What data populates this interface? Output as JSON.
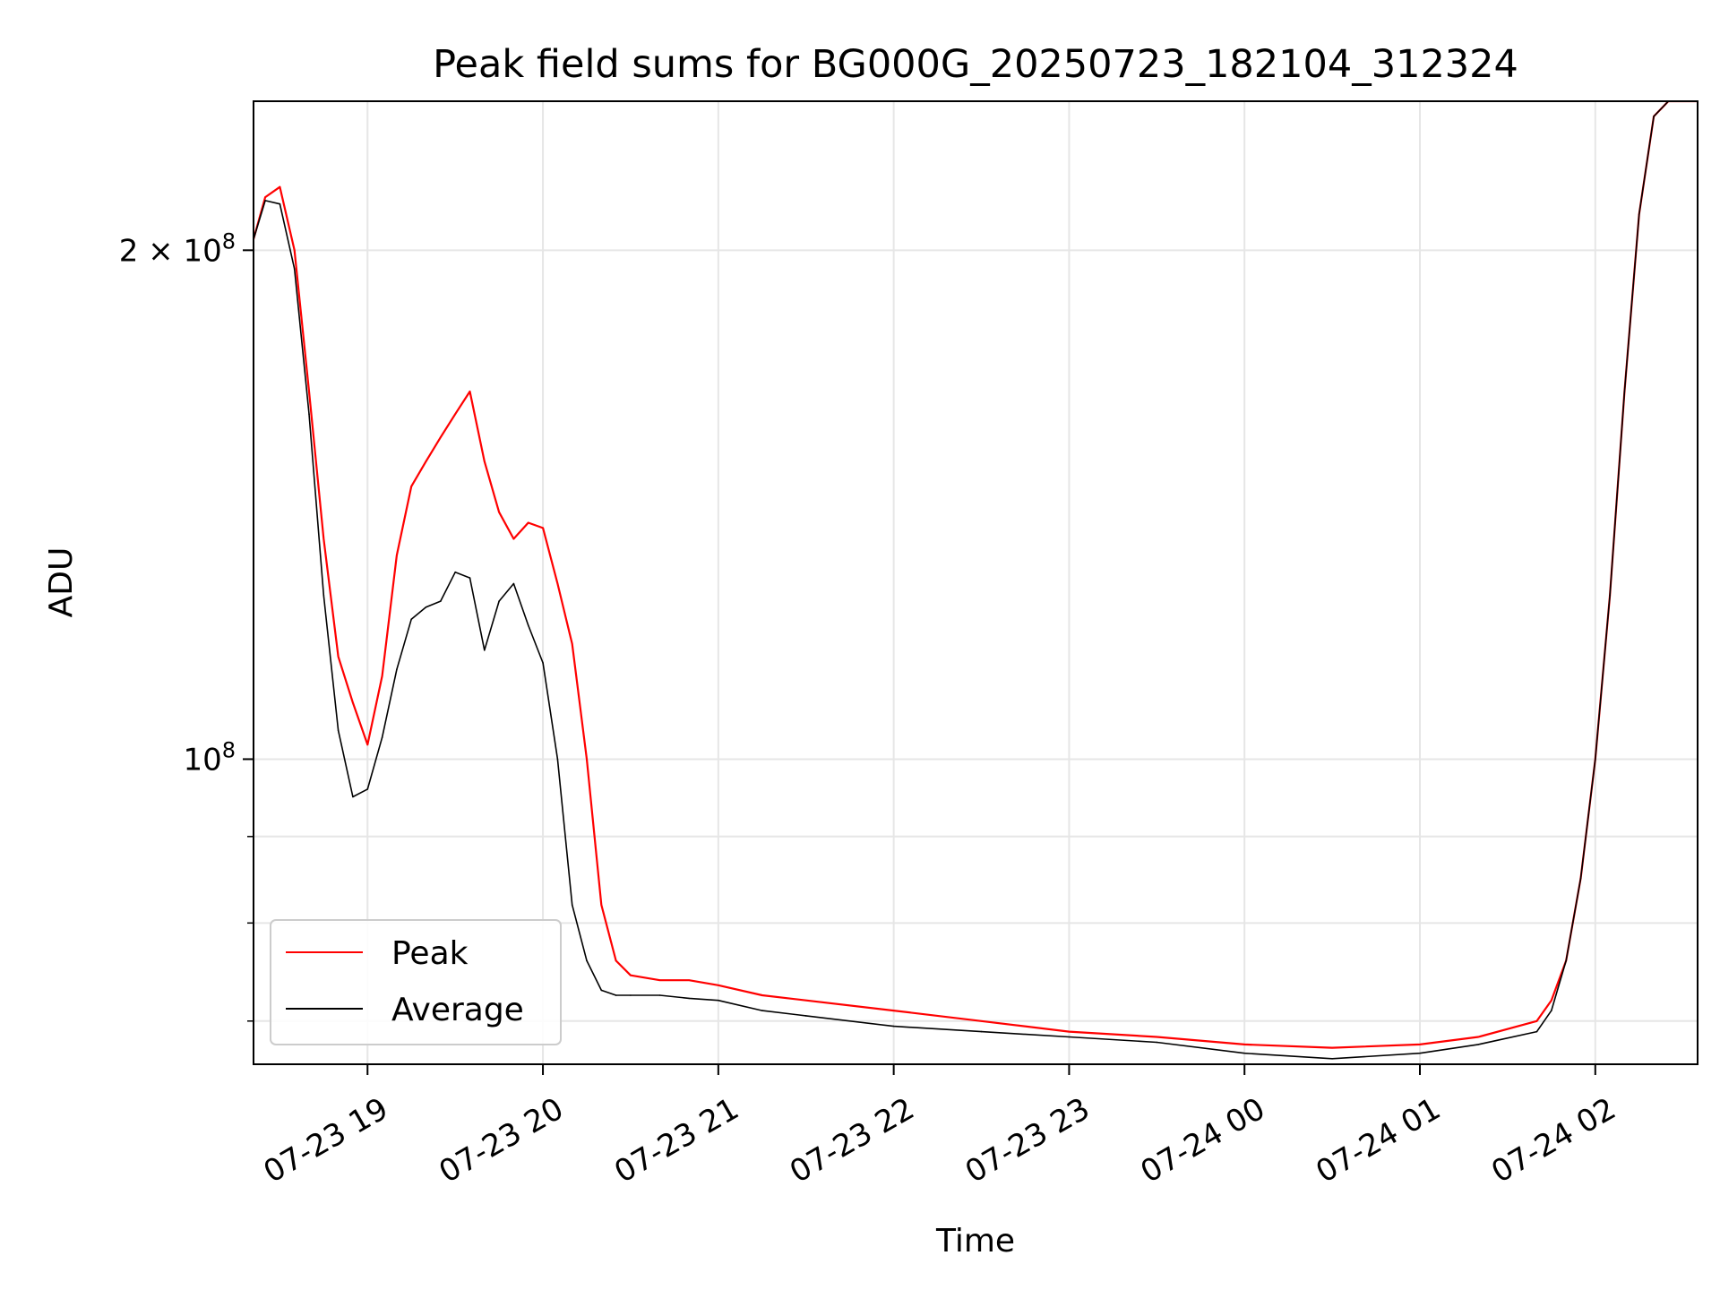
{
  "chart_data": {
    "type": "line",
    "title": "Peak field sums for BG000G_20250723_182104_312324",
    "xlabel": "Time",
    "ylabel": "ADU",
    "y_scale": "log",
    "ylim": [
      66000000,
      245000000
    ],
    "xlim": [
      "07-23 18:21",
      "07-24 02:35"
    ],
    "grid": true,
    "legend_position": "lower-left",
    "x_ticks": [
      {
        "time": "07-23 19:00",
        "label": "07-23 19"
      },
      {
        "time": "07-23 20:00",
        "label": "07-23 20"
      },
      {
        "time": "07-23 21:00",
        "label": "07-23 21"
      },
      {
        "time": "07-23 22:00",
        "label": "07-23 22"
      },
      {
        "time": "07-23 23:00",
        "label": "07-23 23"
      },
      {
        "time": "07-24 00:00",
        "label": "07-24 00"
      },
      {
        "time": "07-24 01:00",
        "label": "07-24 01"
      },
      {
        "time": "07-24 02:00",
        "label": "07-24 02"
      }
    ],
    "y_ticks": [
      {
        "value": 100000000,
        "base": "10",
        "sup": "8",
        "prefix": ""
      },
      {
        "value": 200000000,
        "base": "2 × 10",
        "sup": "8",
        "prefix": ""
      }
    ],
    "y_minor_ticks": [
      70000000,
      80000000,
      90000000
    ],
    "series": [
      {
        "name": "Peak",
        "color": "#ff0000",
        "x": [
          "07-23 18:21",
          "07-23 18:25",
          "07-23 18:30",
          "07-23 18:35",
          "07-23 18:40",
          "07-23 18:45",
          "07-23 18:50",
          "07-23 18:55",
          "07-23 19:00",
          "07-23 19:05",
          "07-23 19:10",
          "07-23 19:15",
          "07-23 19:20",
          "07-23 19:25",
          "07-23 19:30",
          "07-23 19:35",
          "07-23 19:40",
          "07-23 19:45",
          "07-23 19:50",
          "07-23 19:55",
          "07-23 20:00",
          "07-23 20:05",
          "07-23 20:10",
          "07-23 20:15",
          "07-23 20:20",
          "07-23 20:25",
          "07-23 20:30",
          "07-23 20:40",
          "07-23 20:50",
          "07-23 21:00",
          "07-23 21:15",
          "07-23 21:30",
          "07-23 22:00",
          "07-23 22:30",
          "07-23 23:00",
          "07-23 23:30",
          "07-24 00:00",
          "07-24 00:30",
          "07-24 01:00",
          "07-24 01:20",
          "07-24 01:40",
          "07-24 01:45",
          "07-24 01:50",
          "07-24 01:55",
          "07-24 02:00",
          "07-24 02:05",
          "07-24 02:10",
          "07-24 02:15",
          "07-24 02:20",
          "07-24 02:25",
          "07-24 02:30",
          "07-24 02:35"
        ],
        "values": [
          203000000,
          215000000,
          218000000,
          200000000,
          165000000,
          135000000,
          115000000,
          108000000,
          102000000,
          112000000,
          132000000,
          145000000,
          150000000,
          155000000,
          160000000,
          165000000,
          150000000,
          140000000,
          135000000,
          138000000,
          137000000,
          127000000,
          117000000,
          100000000,
          82000000,
          76000000,
          74500000,
          74000000,
          74000000,
          73500000,
          72500000,
          72000000,
          71000000,
          70000000,
          69000000,
          68500000,
          67800000,
          67500000,
          67800000,
          68500000,
          70000000,
          72000000,
          76000000,
          85000000,
          100000000,
          125000000,
          165000000,
          210000000,
          240000000,
          245000000,
          245000000,
          245000000
        ]
      },
      {
        "name": "Average",
        "color": "#000000",
        "x": [
          "07-23 18:21",
          "07-23 18:25",
          "07-23 18:30",
          "07-23 18:35",
          "07-23 18:40",
          "07-23 18:45",
          "07-23 18:50",
          "07-23 18:55",
          "07-23 19:00",
          "07-23 19:05",
          "07-23 19:10",
          "07-23 19:15",
          "07-23 19:20",
          "07-23 19:25",
          "07-23 19:30",
          "07-23 19:35",
          "07-23 19:40",
          "07-23 19:45",
          "07-23 19:50",
          "07-23 19:55",
          "07-23 20:00",
          "07-23 20:05",
          "07-23 20:10",
          "07-23 20:15",
          "07-23 20:20",
          "07-23 20:25",
          "07-23 20:30",
          "07-23 20:40",
          "07-23 20:50",
          "07-23 21:00",
          "07-23 21:15",
          "07-23 21:30",
          "07-23 22:00",
          "07-23 22:30",
          "07-23 23:00",
          "07-23 23:30",
          "07-24 00:00",
          "07-24 00:30",
          "07-24 01:00",
          "07-24 01:20",
          "07-24 01:40",
          "07-24 01:45",
          "07-24 01:50",
          "07-24 01:55",
          "07-24 02:00",
          "07-24 02:05",
          "07-24 02:10",
          "07-24 02:15",
          "07-24 02:20",
          "07-24 02:25",
          "07-24 02:30",
          "07-24 02:35"
        ],
        "values": [
          203000000,
          214000000,
          213000000,
          195000000,
          160000000,
          125000000,
          104000000,
          95000000,
          96000000,
          103000000,
          113000000,
          121000000,
          123000000,
          124000000,
          129000000,
          128000000,
          116000000,
          124000000,
          127000000,
          120000000,
          114000000,
          100000000,
          82000000,
          76000000,
          73000000,
          72500000,
          72500000,
          72500000,
          72200000,
          72000000,
          71000000,
          70500000,
          69500000,
          69000000,
          68500000,
          68000000,
          67000000,
          66500000,
          67000000,
          67800000,
          69000000,
          71000000,
          76000000,
          85000000,
          100000000,
          125000000,
          165000000,
          210000000,
          240000000,
          245000000,
          245000000,
          245000000
        ]
      }
    ]
  }
}
